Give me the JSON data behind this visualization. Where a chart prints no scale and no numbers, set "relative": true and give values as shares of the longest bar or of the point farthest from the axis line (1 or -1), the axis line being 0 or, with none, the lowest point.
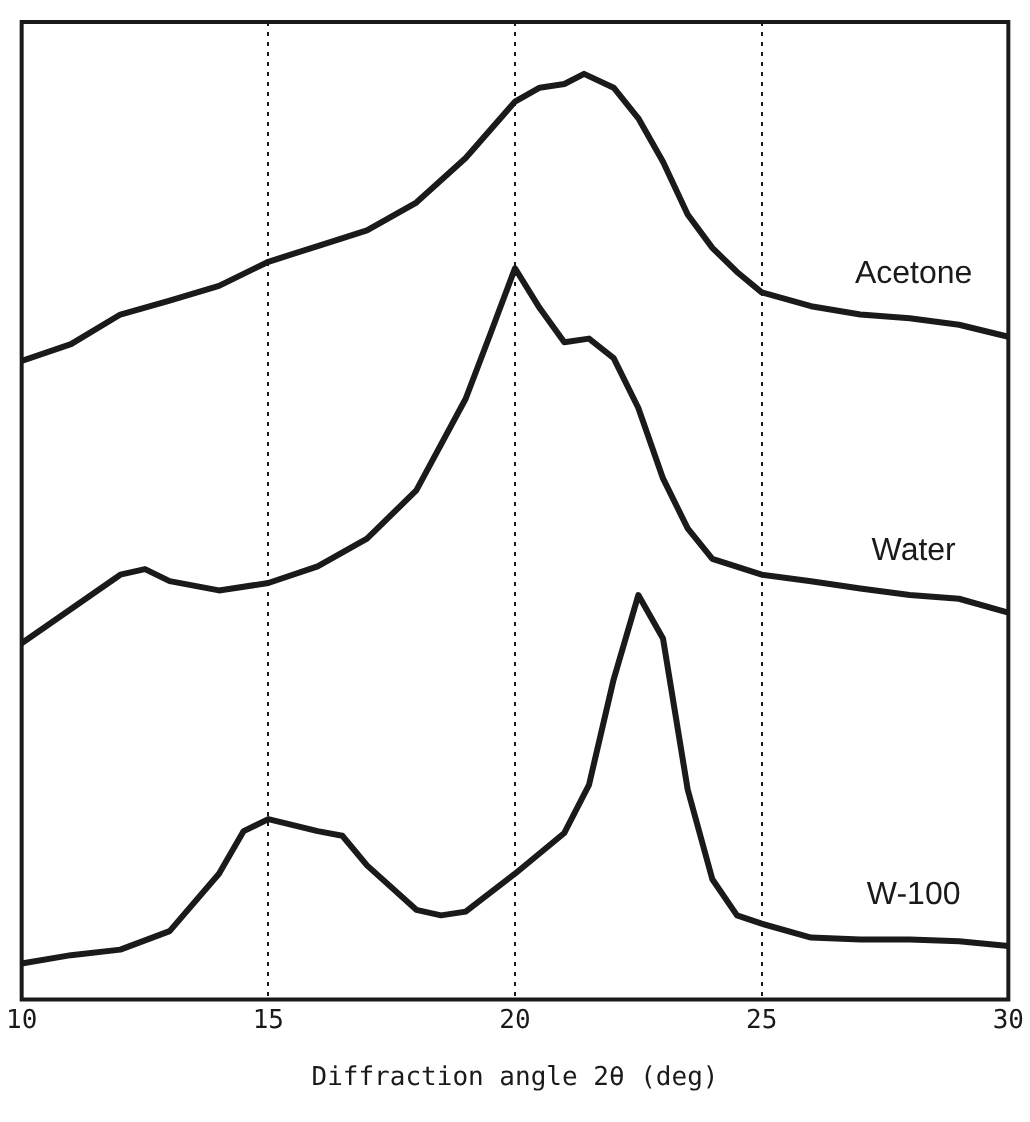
{
  "chart_data": {
    "type": "line",
    "relative": true,
    "xlabel": "Diffraction angle 2θ (deg)",
    "xlim": [
      10,
      30
    ],
    "xticks": [
      10,
      15,
      20,
      25,
      30
    ],
    "grid": "x",
    "legend": false,
    "marker": "none",
    "line_style": "solid",
    "series": [
      {
        "name": "Acetone",
        "color": "#1a1a1a",
        "x": [
          10,
          11,
          12,
          13,
          14,
          15,
          16,
          17,
          18,
          19,
          20,
          20.5,
          21,
          21.4,
          22,
          22.5,
          23,
          23.5,
          24,
          24.5,
          25,
          26,
          27,
          28,
          29,
          30
        ],
        "values": [
          0.69,
          0.708,
          0.74,
          0.755,
          0.771,
          0.797,
          0.814,
          0.831,
          0.861,
          0.909,
          0.97,
          0.985,
          0.989,
          1,
          0.985,
          0.952,
          0.905,
          0.848,
          0.812,
          0.786,
          0.764,
          0.749,
          0.74,
          0.736,
          0.729,
          0.716
        ]
      },
      {
        "name": "Water",
        "color": "#1a1a1a",
        "x": [
          10,
          11,
          12,
          12.5,
          13,
          14,
          15,
          16,
          17,
          18,
          19,
          19.5,
          20,
          20.5,
          21,
          21.5,
          22,
          22.5,
          23,
          23.5,
          24,
          25,
          26,
          27,
          28,
          29,
          30
        ],
        "values": [
          0.385,
          0.422,
          0.459,
          0.465,
          0.452,
          0.442,
          0.45,
          0.468,
          0.498,
          0.55,
          0.649,
          0.719,
          0.79,
          0.747,
          0.71,
          0.714,
          0.693,
          0.639,
          0.563,
          0.509,
          0.476,
          0.459,
          0.452,
          0.444,
          0.437,
          0.433,
          0.418
        ]
      },
      {
        "name": "W-100",
        "color": "#1a1a1a",
        "x": [
          10,
          11,
          12,
          13,
          14,
          14.5,
          15,
          16,
          16.5,
          17,
          18,
          18.5,
          19,
          20,
          21,
          21.5,
          22,
          22.5,
          23,
          23.5,
          24,
          24.5,
          25,
          26,
          27,
          28,
          29,
          30
        ],
        "values": [
          0.039,
          0.048,
          0.054,
          0.074,
          0.136,
          0.182,
          0.195,
          0.182,
          0.177,
          0.145,
          0.097,
          0.091,
          0.095,
          0.136,
          0.18,
          0.232,
          0.346,
          0.437,
          0.39,
          0.227,
          0.13,
          0.091,
          0.082,
          0.067,
          0.065,
          0.065,
          0.063,
          0.058
        ]
      }
    ]
  }
}
